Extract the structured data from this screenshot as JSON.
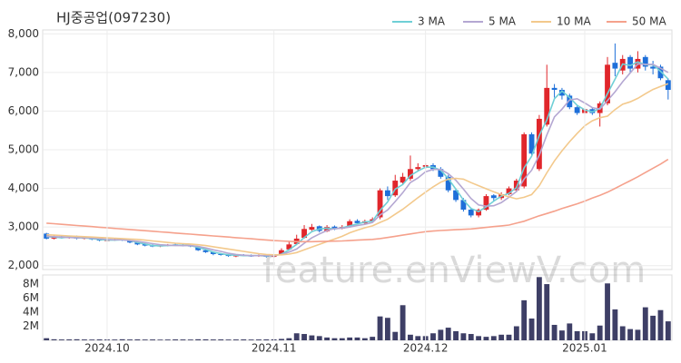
{
  "chart_data": [
    {
      "type": "candlestick",
      "title": "HJ중공업(097230)",
      "up_color": "#e0262b",
      "down_color": "#1e6fd9",
      "grid": true,
      "legend": "top-right",
      "ylim": [
        1900,
        8100
      ],
      "yticks": [
        {
          "value": 2000,
          "label": "2,000"
        },
        {
          "value": 3000,
          "label": "3,000"
        },
        {
          "value": 4000,
          "label": "4,000"
        },
        {
          "value": 5000,
          "label": "5,000"
        },
        {
          "value": 6000,
          "label": "6,000"
        },
        {
          "value": 7000,
          "label": "7,000"
        },
        {
          "value": 8000,
          "label": "8,000"
        }
      ],
      "open": [
        2830,
        2700,
        2760,
        2720,
        2760,
        2700,
        2730,
        2690,
        2640,
        2660,
        2690,
        2650,
        2600,
        2560,
        2520,
        2500,
        2520,
        2550,
        2530,
        2520,
        2490,
        2400,
        2350,
        2300,
        2280,
        2240,
        2280,
        2260,
        2250,
        2270,
        2230,
        2290,
        2420,
        2560,
        2720,
        2930,
        3020,
        2890,
        3010,
        2960,
        3000,
        3160,
        3100,
        3150,
        3250,
        3950,
        3820,
        4150,
        4250,
        4500,
        4560,
        4600,
        4500,
        4300,
        3950,
        3700,
        3450,
        3300,
        3450,
        3820,
        3750,
        3850,
        3950,
        4050,
        5400,
        4500,
        5650,
        6600,
        6550,
        6400,
        6100,
        5950,
        6050,
        5950,
        6200,
        7250,
        7050,
        7400,
        7100,
        7400,
        7150,
        7150,
        6800
      ],
      "high": [
        2850,
        2780,
        2780,
        2770,
        2780,
        2750,
        2750,
        2710,
        2690,
        2700,
        2710,
        2670,
        2620,
        2580,
        2550,
        2540,
        2560,
        2570,
        2560,
        2540,
        2500,
        2420,
        2370,
        2330,
        2300,
        2290,
        2300,
        2290,
        2290,
        2290,
        2300,
        2450,
        2620,
        2800,
        3050,
        3080,
        3040,
        3050,
        3040,
        3050,
        3200,
        3200,
        3190,
        3250,
        4000,
        4050,
        4350,
        4400,
        4850,
        4650,
        4650,
        4650,
        4550,
        4350,
        4000,
        3750,
        3500,
        3480,
        3850,
        3850,
        3900,
        4050,
        4250,
        5450,
        5450,
        5900,
        7200,
        6700,
        6600,
        6450,
        6150,
        6100,
        6100,
        6250,
        7400,
        7750,
        7450,
        7450,
        7550,
        7450,
        7300,
        7200,
        6850
      ],
      "low": [
        2680,
        2680,
        2700,
        2700,
        2680,
        2680,
        2660,
        2630,
        2620,
        2640,
        2640,
        2580,
        2530,
        2500,
        2480,
        2480,
        2500,
        2510,
        2500,
        2480,
        2380,
        2330,
        2270,
        2260,
        2230,
        2220,
        2240,
        2230,
        2230,
        2210,
        2210,
        2280,
        2400,
        2530,
        2700,
        2900,
        2860,
        2870,
        2920,
        2940,
        2980,
        3070,
        3080,
        3120,
        3200,
        3700,
        3780,
        4100,
        4200,
        4450,
        4500,
        4450,
        4250,
        3900,
        3650,
        3400,
        3250,
        3250,
        3420,
        3680,
        3700,
        3820,
        3900,
        4000,
        4850,
        4450,
        5600,
        6350,
        6300,
        6050,
        5900,
        5900,
        5900,
        5600,
        6150,
        6900,
        6950,
        7000,
        7000,
        7050,
        6950,
        6800,
        6300
      ],
      "close": [
        2700,
        2750,
        2720,
        2740,
        2700,
        2720,
        2680,
        2650,
        2660,
        2680,
        2660,
        2600,
        2550,
        2520,
        2500,
        2520,
        2540,
        2530,
        2520,
        2500,
        2400,
        2350,
        2300,
        2280,
        2250,
        2270,
        2260,
        2250,
        2270,
        2230,
        2280,
        2400,
        2550,
        2700,
        2950,
        3000,
        2900,
        3000,
        2950,
        3000,
        3150,
        3100,
        3150,
        3200,
        3950,
        3800,
        4200,
        4300,
        4500,
        4550,
        4600,
        4500,
        4300,
        3950,
        3700,
        3450,
        3300,
        3450,
        3800,
        3750,
        3850,
        4000,
        4200,
        5400,
        4900,
        5800,
        6600,
        6550,
        6400,
        6100,
        5950,
        6050,
        5950,
        6200,
        7200,
        7100,
        7350,
        7100,
        7350,
        7150,
        7100,
        6850,
        6550
      ],
      "series": [
        {
          "name": "3 MA",
          "color": "#6fcfd6",
          "values": [
            2750,
            2740,
            2720,
            2740,
            2720,
            2720,
            2700,
            2680,
            2660,
            2660,
            2670,
            2650,
            2600,
            2560,
            2520,
            2510,
            2520,
            2530,
            2530,
            2520,
            2470,
            2420,
            2350,
            2310,
            2280,
            2270,
            2260,
            2260,
            2260,
            2250,
            2260,
            2300,
            2410,
            2550,
            2730,
            2880,
            2950,
            2970,
            2950,
            2980,
            3030,
            3080,
            3130,
            3150,
            3430,
            3650,
            3980,
            4100,
            4330,
            4450,
            4550,
            4550,
            4470,
            4250,
            3980,
            3700,
            3480,
            3400,
            3520,
            3670,
            3800,
            3870,
            4020,
            4530,
            4830,
            5370,
            5770,
            6320,
            6520,
            6350,
            6150,
            6030,
            5980,
            6070,
            6450,
            6830,
            7220,
            7180,
            7270,
            7200,
            7200,
            7030,
            6830
          ]
        },
        {
          "name": "5 MA",
          "color": "#b4a7d2",
          "values": [
            2760,
            2750,
            2740,
            2730,
            2720,
            2730,
            2710,
            2700,
            2680,
            2670,
            2670,
            2650,
            2630,
            2600,
            2570,
            2540,
            2530,
            2520,
            2520,
            2520,
            2500,
            2460,
            2410,
            2370,
            2320,
            2290,
            2270,
            2260,
            2260,
            2260,
            2260,
            2290,
            2350,
            2430,
            2580,
            2720,
            2820,
            2910,
            2960,
            2970,
            3000,
            3040,
            3070,
            3120,
            3310,
            3440,
            3660,
            3890,
            4150,
            4270,
            4430,
            4490,
            4490,
            4380,
            4210,
            3980,
            3740,
            3570,
            3540,
            3550,
            3630,
            3770,
            3920,
            4240,
            4470,
            4860,
            5380,
            5850,
            6050,
            6290,
            6320,
            6210,
            6090,
            6050,
            6270,
            6500,
            6760,
            6990,
            7220,
            7210,
            7210,
            7110,
            7000
          ]
        },
        {
          "name": "10 MA",
          "color": "#f3c98c",
          "values": [
            2800,
            2790,
            2780,
            2770,
            2760,
            2750,
            2740,
            2730,
            2720,
            2710,
            2700,
            2690,
            2680,
            2660,
            2640,
            2620,
            2600,
            2580,
            2570,
            2560,
            2540,
            2520,
            2490,
            2460,
            2430,
            2400,
            2370,
            2340,
            2310,
            2290,
            2280,
            2280,
            2300,
            2340,
            2410,
            2480,
            2550,
            2620,
            2690,
            2760,
            2850,
            2920,
            2980,
            3030,
            3120,
            3200,
            3330,
            3460,
            3610,
            3760,
            3900,
            4040,
            4160,
            4240,
            4260,
            4240,
            4150,
            4070,
            3990,
            3910,
            3840,
            3780,
            3730,
            3770,
            3840,
            4070,
            4400,
            4710,
            4970,
            5210,
            5420,
            5620,
            5750,
            5830,
            5870,
            6040,
            6180,
            6240,
            6330,
            6450,
            6560,
            6640,
            6710
          ]
        },
        {
          "name": "50 MA",
          "color": "#f5a18c",
          "values": [
            3100,
            3085,
            3070,
            3055,
            3040,
            3025,
            3010,
            2995,
            2980,
            2965,
            2950,
            2935,
            2920,
            2905,
            2890,
            2875,
            2860,
            2845,
            2830,
            2815,
            2800,
            2785,
            2770,
            2755,
            2740,
            2725,
            2710,
            2695,
            2680,
            2665,
            2650,
            2640,
            2630,
            2620,
            2620,
            2620,
            2625,
            2630,
            2635,
            2640,
            2650,
            2660,
            2670,
            2680,
            2700,
            2730,
            2760,
            2790,
            2820,
            2850,
            2880,
            2895,
            2910,
            2920,
            2930,
            2940,
            2950,
            2970,
            2990,
            3010,
            3030,
            3050,
            3100,
            3150,
            3220,
            3290,
            3350,
            3410,
            3480,
            3540,
            3600,
            3670,
            3750,
            3820,
            3900,
            4000,
            4100,
            4200,
            4300,
            4410,
            4520,
            4630,
            4750
          ]
        }
      ]
    },
    {
      "type": "bar",
      "color": "#3e3f66",
      "ylim": [
        0,
        9300000
      ],
      "yticks": [
        {
          "value": 2000000,
          "label": "2M"
        },
        {
          "value": 4000000,
          "label": "4M"
        },
        {
          "value": 6000000,
          "label": "6M"
        },
        {
          "value": 8000000,
          "label": "8M"
        }
      ],
      "categories": [
        null,
        null,
        null,
        null,
        null,
        null,
        null,
        null,
        "2024.10",
        null,
        null,
        null,
        null,
        null,
        null,
        null,
        null,
        null,
        null,
        null,
        null,
        null,
        null,
        null,
        null,
        null,
        null,
        null,
        null,
        null,
        "2024.11",
        null,
        null,
        null,
        null,
        null,
        null,
        null,
        null,
        null,
        null,
        null,
        null,
        null,
        null,
        null,
        null,
        null,
        null,
        null,
        "2024.12",
        null,
        null,
        null,
        null,
        null,
        null,
        null,
        null,
        null,
        null,
        null,
        null,
        null,
        null,
        null,
        null,
        null,
        null,
        null,
        null,
        "2025.01",
        null,
        null,
        null,
        null,
        null,
        null,
        null,
        null,
        null,
        null,
        null
      ],
      "values": [
        300000,
        150000,
        120000,
        130000,
        150000,
        120000,
        110000,
        130000,
        120000,
        110000,
        150000,
        120000,
        130000,
        110000,
        120000,
        100000,
        110000,
        130000,
        120000,
        110000,
        150000,
        140000,
        120000,
        130000,
        110000,
        120000,
        130000,
        110000,
        120000,
        130000,
        140000,
        200000,
        300000,
        1000000,
        900000,
        700000,
        600000,
        400000,
        300000,
        300000,
        400000,
        400000,
        300000,
        500000,
        3400000,
        3200000,
        1200000,
        5000000,
        800000,
        600000,
        600000,
        1000000,
        1500000,
        1800000,
        1300000,
        1000000,
        900000,
        600000,
        500000,
        600000,
        800000,
        800000,
        2000000,
        5700000,
        3100000,
        9000000,
        8000000,
        2200000,
        1400000,
        2400000,
        1300000,
        1300000,
        1000000,
        2100000,
        8100000,
        4400000,
        2000000,
        1600000,
        1500000,
        4700000,
        3500000,
        4300000,
        2700000
      ]
    }
  ],
  "watermark": "feature.enViewV.com"
}
